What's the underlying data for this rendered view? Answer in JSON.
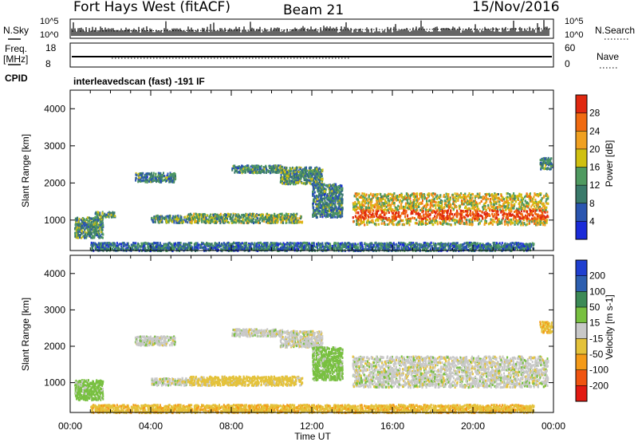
{
  "header": {
    "station": "Fort Hays West (fitACF)",
    "beam": "Beam 21",
    "date": "15/Nov/2016"
  },
  "top_panels": {
    "nsky_label": "N.Sky",
    "nsearch_label": "N.Search",
    "noise_ticks": [
      "10^5",
      "10^0"
    ],
    "freq_label": [
      "Freq.",
      "[MHz]"
    ],
    "freq_ticks": [
      "18",
      "8"
    ],
    "nave_label": "Nave",
    "nave_ticks": [
      "60",
      "0"
    ],
    "cpid_label": "CPID",
    "cpid_text": "interleavedscan (fast) -191 IF"
  },
  "colors": {
    "power": [
      "#1a2bd9",
      "#2a55b0",
      "#3a7a6a",
      "#4f9a60",
      "#d0c010",
      "#f0a020",
      "#f06a10",
      "#e02810"
    ],
    "velocity": [
      "#e21a12",
      "#f05410",
      "#f49a18",
      "#e4c23a",
      "#c8c8c8",
      "#78c040",
      "#3c8a56",
      "#2d5fb0",
      "#1f3fd0"
    ]
  },
  "chart_data": [
    {
      "type": "heatmap",
      "name": "power",
      "xlabel": "Time UT",
      "ylabel": "Slant Range [km]",
      "xlim": [
        0,
        24
      ],
      "ylim": [
        180,
        4500
      ],
      "x_ticks": [
        "00:00",
        "04:00",
        "08:00",
        "12:00",
        "16:00",
        "20:00",
        "00:00"
      ],
      "y_ticks": [
        1000,
        2000,
        3000,
        4000
      ],
      "colorbar": {
        "label": "Power [dB]",
        "range": [
          0,
          32
        ],
        "ticks": [
          4,
          8,
          12,
          16,
          20,
          24,
          28
        ]
      },
      "regions": [
        {
          "t0": 0.2,
          "t1": 1.6,
          "r0": 550,
          "r1": 1100,
          "level": 0.35
        },
        {
          "t0": 1.2,
          "t1": 2.2,
          "r0": 1100,
          "r1": 1250,
          "level": 0.3
        },
        {
          "t0": 3.2,
          "t1": 5.2,
          "r0": 2050,
          "r1": 2300,
          "level": 0.3
        },
        {
          "t0": 4.0,
          "t1": 5.8,
          "r0": 950,
          "r1": 1150,
          "level": 0.35
        },
        {
          "t0": 5.8,
          "t1": 11.5,
          "r0": 950,
          "r1": 1200,
          "level": 0.45
        },
        {
          "t0": 8.0,
          "t1": 10.5,
          "r0": 2300,
          "r1": 2500,
          "level": 0.3
        },
        {
          "t0": 10.4,
          "t1": 12.5,
          "r0": 2000,
          "r1": 2450,
          "level": 0.35
        },
        {
          "t0": 12.0,
          "t1": 13.5,
          "r0": 1100,
          "r1": 2000,
          "level": 0.3
        },
        {
          "t0": 14.0,
          "t1": 23.7,
          "r0": 900,
          "r1": 1750,
          "level": 0.6
        },
        {
          "t0": 1.0,
          "t1": 23.0,
          "r0": 200,
          "r1": 420,
          "level": 0.25
        },
        {
          "t0": 23.3,
          "t1": 23.9,
          "r0": 2400,
          "r1": 2700,
          "level": 0.3
        }
      ]
    },
    {
      "type": "heatmap",
      "name": "velocity",
      "xlabel": "Time UT",
      "ylabel": "Slant Range [km]",
      "xlim": [
        0,
        24
      ],
      "ylim": [
        180,
        4500
      ],
      "x_ticks": [
        "00:00",
        "04:00",
        "08:00",
        "12:00",
        "16:00",
        "20:00",
        "00:00"
      ],
      "y_ticks": [
        1000,
        2000,
        3000,
        4000
      ],
      "colorbar": {
        "label": "Velocity [m s-1]",
        "range": [
          -250,
          250
        ],
        "ticks": [
          -200,
          -100,
          -50,
          -15,
          15,
          50,
          100,
          200
        ]
      },
      "regions": [
        {
          "t0": 0.2,
          "t1": 1.6,
          "r0": 550,
          "r1": 1100,
          "v": 30
        },
        {
          "t0": 3.2,
          "t1": 5.2,
          "r0": 2050,
          "r1": 2300,
          "v": 0
        },
        {
          "t0": 4.0,
          "t1": 5.8,
          "r0": 950,
          "r1": 1150,
          "v": 0
        },
        {
          "t0": 5.8,
          "t1": 11.5,
          "r0": 950,
          "r1": 1200,
          "v": -30
        },
        {
          "t0": 8.0,
          "t1": 10.5,
          "r0": 2300,
          "r1": 2500,
          "v": 0
        },
        {
          "t0": 10.4,
          "t1": 12.5,
          "r0": 2000,
          "r1": 2450,
          "v": 0
        },
        {
          "t0": 12.0,
          "t1": 13.5,
          "r0": 1100,
          "r1": 2000,
          "v": 30
        },
        {
          "t0": 14.0,
          "t1": 23.7,
          "r0": 900,
          "r1": 1750,
          "v": 0
        },
        {
          "t0": 1.0,
          "t1": 23.0,
          "r0": 200,
          "r1": 420,
          "v": -40
        },
        {
          "t0": 23.3,
          "t1": 23.9,
          "r0": 2400,
          "r1": 2700,
          "v": -40
        }
      ]
    }
  ]
}
